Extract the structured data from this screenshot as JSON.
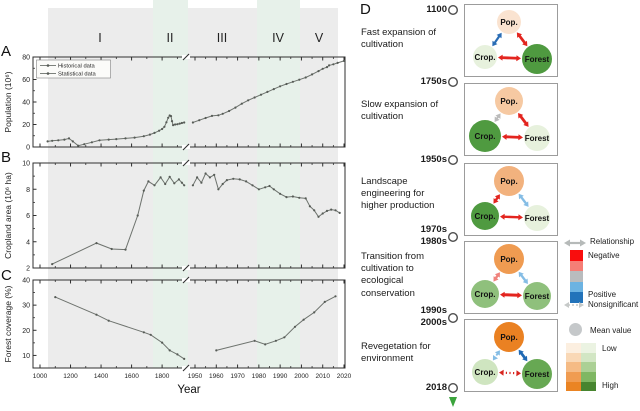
{
  "figure": {
    "panels": {
      "a": "A",
      "b": "B",
      "c": "C",
      "d": "D"
    },
    "stage_numerals": [
      "I",
      "II",
      "III",
      "IV",
      "V"
    ],
    "x_axis": {
      "label": "Year",
      "left_ticks": [
        1000,
        1200,
        1400,
        1600,
        1800
      ],
      "right_ticks": [
        1950,
        1960,
        1970,
        1980,
        1990,
        2000,
        2010,
        2020
      ],
      "break_year": 1950
    }
  },
  "chart_data": [
    {
      "id": "population",
      "type": "line",
      "panel": "A",
      "ylabel": "Population (10⁶)",
      "ylim": [
        0,
        80
      ],
      "yticks": [
        0,
        20,
        40,
        60,
        80
      ],
      "legend": [
        "Historical data",
        "Statistical data"
      ],
      "series": [
        {
          "name": "Historical data",
          "points": [
            [
              1050,
              5
            ],
            [
              1080,
              5.5
            ],
            [
              1120,
              6
            ],
            [
              1160,
              6.6
            ],
            [
              1190,
              7.6
            ],
            [
              1215,
              5
            ],
            [
              1250,
              1.2
            ],
            [
              1290,
              2.5
            ],
            [
              1340,
              4.2
            ],
            [
              1390,
              6
            ],
            [
              1450,
              6.6
            ],
            [
              1500,
              7
            ],
            [
              1560,
              7.6
            ],
            [
              1620,
              8.4
            ],
            [
              1680,
              9.6
            ],
            [
              1720,
              11
            ],
            [
              1750,
              12.5
            ],
            [
              1780,
              14.5
            ],
            [
              1800,
              16
            ],
            [
              1815,
              18
            ],
            [
              1828,
              22
            ],
            [
              1840,
              26
            ],
            [
              1850,
              28
            ],
            [
              1858,
              27.5
            ],
            [
              1865,
              23
            ],
            [
              1872,
              19.5
            ],
            [
              1885,
              20
            ],
            [
              1900,
              20.3
            ],
            [
              1915,
              20.8
            ],
            [
              1930,
              21.3
            ],
            [
              1945,
              21.8
            ]
          ]
        },
        {
          "name": "Statistical data",
          "points": [
            [
              1949,
              21.8
            ],
            [
              1952,
              23.8
            ],
            [
              1955,
              25.8
            ],
            [
              1958,
              27.6
            ],
            [
              1961,
              28.2
            ],
            [
              1963,
              29.5
            ],
            [
              1966,
              32
            ],
            [
              1969,
              35
            ],
            [
              1972,
              38.5
            ],
            [
              1975,
              41.5
            ],
            [
              1978,
              44
            ],
            [
              1981,
              46.5
            ],
            [
              1984,
              49
            ],
            [
              1987,
              51.5
            ],
            [
              1990,
              54
            ],
            [
              1993,
              56
            ],
            [
              1996,
              58
            ],
            [
              1999,
              59.8
            ],
            [
              2002,
              61.8
            ],
            [
              2005,
              64.5
            ],
            [
              2008,
              67.5
            ],
            [
              2010,
              69.5
            ],
            [
              2012,
              71
            ],
            [
              2013,
              72.5
            ],
            [
              2015,
              73.5
            ],
            [
              2017,
              74.8
            ],
            [
              2020,
              76.5
            ]
          ]
        }
      ]
    },
    {
      "id": "cropland",
      "type": "line",
      "panel": "B",
      "ylabel": "Cropland area (10⁶ ha)",
      "ylim": [
        2,
        10
      ],
      "yticks": [
        2,
        4,
        6,
        8,
        10
      ],
      "series": [
        {
          "name": "Historical data",
          "points": [
            [
              1080,
              2.3
            ],
            [
              1370,
              3.9
            ],
            [
              1470,
              3.45
            ],
            [
              1560,
              3.4
            ],
            [
              1640,
              6
            ],
            [
              1680,
              7.9
            ],
            [
              1710,
              8.6
            ],
            [
              1750,
              8.3
            ],
            [
              1790,
              8.9
            ],
            [
              1820,
              8.4
            ],
            [
              1850,
              8.95
            ],
            [
              1880,
              8.45
            ],
            [
              1910,
              8.75
            ],
            [
              1930,
              8.5
            ],
            [
              1945,
              8.3
            ]
          ]
        },
        {
          "name": "Statistical data",
          "points": [
            [
              1949,
              8.3
            ],
            [
              1951,
              8.9
            ],
            [
              1953,
              8.5
            ],
            [
              1955,
              9.2
            ],
            [
              1957,
              8.9
            ],
            [
              1959,
              9.1
            ],
            [
              1961,
              8.0
            ],
            [
              1963,
              8.4
            ],
            [
              1965,
              8.7
            ],
            [
              1968,
              8.8
            ],
            [
              1971,
              8.75
            ],
            [
              1974,
              8.6
            ],
            [
              1977,
              8.3
            ],
            [
              1980,
              8.0
            ],
            [
              1983,
              8.15
            ],
            [
              1985,
              8.25
            ],
            [
              1987,
              8.0
            ],
            [
              1990,
              7.65
            ],
            [
              1993,
              7.4
            ],
            [
              1996,
              7.45
            ],
            [
              1999,
              7.35
            ],
            [
              2002,
              7.3
            ],
            [
              2004,
              6.7
            ],
            [
              2006,
              6.4
            ],
            [
              2008,
              5.9
            ],
            [
              2010,
              6.15
            ],
            [
              2012,
              6.35
            ],
            [
              2014,
              6.45
            ],
            [
              2016,
              6.4
            ],
            [
              2018,
              6.2
            ]
          ]
        }
      ]
    },
    {
      "id": "forest",
      "type": "line",
      "panel": "C",
      "ylabel": "Forest coverage (%)",
      "ylim": [
        5,
        40
      ],
      "yticks": [
        10,
        20,
        30,
        40
      ],
      "series": [
        {
          "name": "Historical data",
          "points": [
            [
              1100,
              33.2
            ],
            [
              1370,
              26.2
            ],
            [
              1450,
              23.8
            ],
            [
              1680,
              19.2
            ],
            [
              1725,
              18.2
            ],
            [
              1800,
              15.1
            ],
            [
              1850,
              12.0
            ],
            [
              1900,
              10.4
            ],
            [
              1945,
              8.6
            ]
          ]
        },
        {
          "name": "Statistical data",
          "points": [
            [
              1960,
              12.0
            ],
            [
              1978,
              15.8
            ],
            [
              1983,
              14.4
            ],
            [
              1988,
              15.8
            ],
            [
              1992,
              17.2
            ],
            [
              1997,
              21.4
            ],
            [
              2001,
              24.2
            ],
            [
              2006,
              27.1
            ],
            [
              2011,
              31.3
            ],
            [
              2016,
              33.5
            ]
          ]
        }
      ]
    }
  ],
  "timeline": {
    "dates": [
      [
        "1100"
      ],
      [
        "1750s"
      ],
      [
        "1950s"
      ],
      [
        "1970s",
        "1980s"
      ],
      [
        "1990s",
        "2000s"
      ],
      [
        "2018"
      ]
    ],
    "node_labels": {
      "pop": "Pop.",
      "crop": "Crop.",
      "forest": "Forest"
    },
    "stages": [
      {
        "description": "Fast expansion of cultivation",
        "nodes": {
          "pop": {
            "fill": "#fae3d0",
            "r": 12
          },
          "crop": {
            "fill": "#e7f1dd",
            "r": 12
          },
          "forest": {
            "fill": "#4f9a40",
            "r": 15
          }
        },
        "edges": {
          "pop_crop": {
            "relation": "positive",
            "color": "#2a6db5",
            "style": "solid",
            "w": 2.2
          },
          "pop_forest": {
            "relation": "negative",
            "color": "#e3251f",
            "style": "solid",
            "w": 2.8
          },
          "crop_forest": {
            "relation": "negative",
            "color": "#e3251f",
            "style": "solid",
            "w": 2.8
          }
        }
      },
      {
        "description": "Slow expansion of cultivation",
        "nodes": {
          "pop": {
            "fill": "#f6c9a2",
            "r": 14
          },
          "crop": {
            "fill": "#4f9a40",
            "r": 16
          },
          "forest": {
            "fill": "#e7f1dd",
            "r": 13
          }
        },
        "edges": {
          "pop_crop": {
            "relation": "nonsignificant",
            "color": "#bbbbbb",
            "style": "dashed",
            "w": 1.8
          },
          "pop_forest": {
            "relation": "negative",
            "color": "#e3251f",
            "style": "solid",
            "w": 2.8
          },
          "crop_forest": {
            "relation": "negative",
            "color": "#e3251f",
            "style": "solid",
            "w": 2.8
          }
        }
      },
      {
        "description": "Landscape engineering for higher production",
        "nodes": {
          "pop": {
            "fill": "#f2b27e",
            "r": 15
          },
          "crop": {
            "fill": "#4f9a40",
            "r": 14
          },
          "forest": {
            "fill": "#e7f1dd",
            "r": 13
          }
        },
        "edges": {
          "pop_crop": {
            "relation": "negative",
            "color": "#e3251f",
            "style": "solid",
            "w": 2.4
          },
          "pop_forest": {
            "relation": "positive-weak",
            "color": "#85bde5",
            "style": "solid",
            "w": 2.4
          },
          "crop_forest": {
            "relation": "negative",
            "color": "#e3251f",
            "style": "solid",
            "w": 2.4
          }
        }
      },
      {
        "description": "Transition from cultivation to ecological conservation",
        "nodes": {
          "pop": {
            "fill": "#ef9b51",
            "r": 15
          },
          "crop": {
            "fill": "#8fc07c",
            "r": 14
          },
          "forest": {
            "fill": "#8fc07c",
            "r": 14
          }
        },
        "edges": {
          "pop_crop": {
            "relation": "negative-weak",
            "color": "#f0837d",
            "style": "solid",
            "w": 2.4
          },
          "pop_forest": {
            "relation": "positive-weak",
            "color": "#85bde5",
            "style": "solid",
            "w": 2.4
          },
          "crop_forest": {
            "relation": "negative",
            "color": "#e3251f",
            "style": "solid",
            "w": 3
          }
        }
      },
      {
        "description": "Revegetation for environment",
        "nodes": {
          "pop": {
            "fill": "#ea8122",
            "r": 15
          },
          "crop": {
            "fill": "#cfe5c0",
            "r": 13
          },
          "forest": {
            "fill": "#67a853",
            "r": 15
          }
        },
        "edges": {
          "pop_crop": {
            "relation": "nonsignificant-positive",
            "color": "#85bde5",
            "style": "dashed",
            "w": 1.8
          },
          "pop_forest": {
            "relation": "positive",
            "color": "#1f69b4",
            "style": "solid",
            "w": 2.8
          },
          "crop_forest": {
            "relation": "nonsignificant-negative",
            "color": "#d8251f",
            "style": "dotted",
            "w": 2.2
          }
        }
      }
    ]
  },
  "legend": {
    "relationship": {
      "title": "Relationship",
      "negative": "Negative",
      "positive": "Positive",
      "nonsignificant": "Nonsignificant",
      "colors": [
        "#f90d0d",
        "#f57e76",
        "#b9bcbe",
        "#6cb3e2",
        "#2273ba"
      ]
    },
    "mean_value": {
      "title": "Mean value",
      "low": "Low",
      "high": "High",
      "orange_ramp": [
        "#fcefe0",
        "#f9d8b6",
        "#f5bb85",
        "#f09c51",
        "#ea8423"
      ],
      "green_ramp": [
        "#ebf3e2",
        "#d2e6c4",
        "#abd095",
        "#7fb763",
        "#47852f"
      ]
    }
  },
  "colors": {
    "band_gray": "#ececec",
    "band_mint": "#e7f1ea",
    "line": "#6e736e",
    "marker": "#565b56"
  }
}
